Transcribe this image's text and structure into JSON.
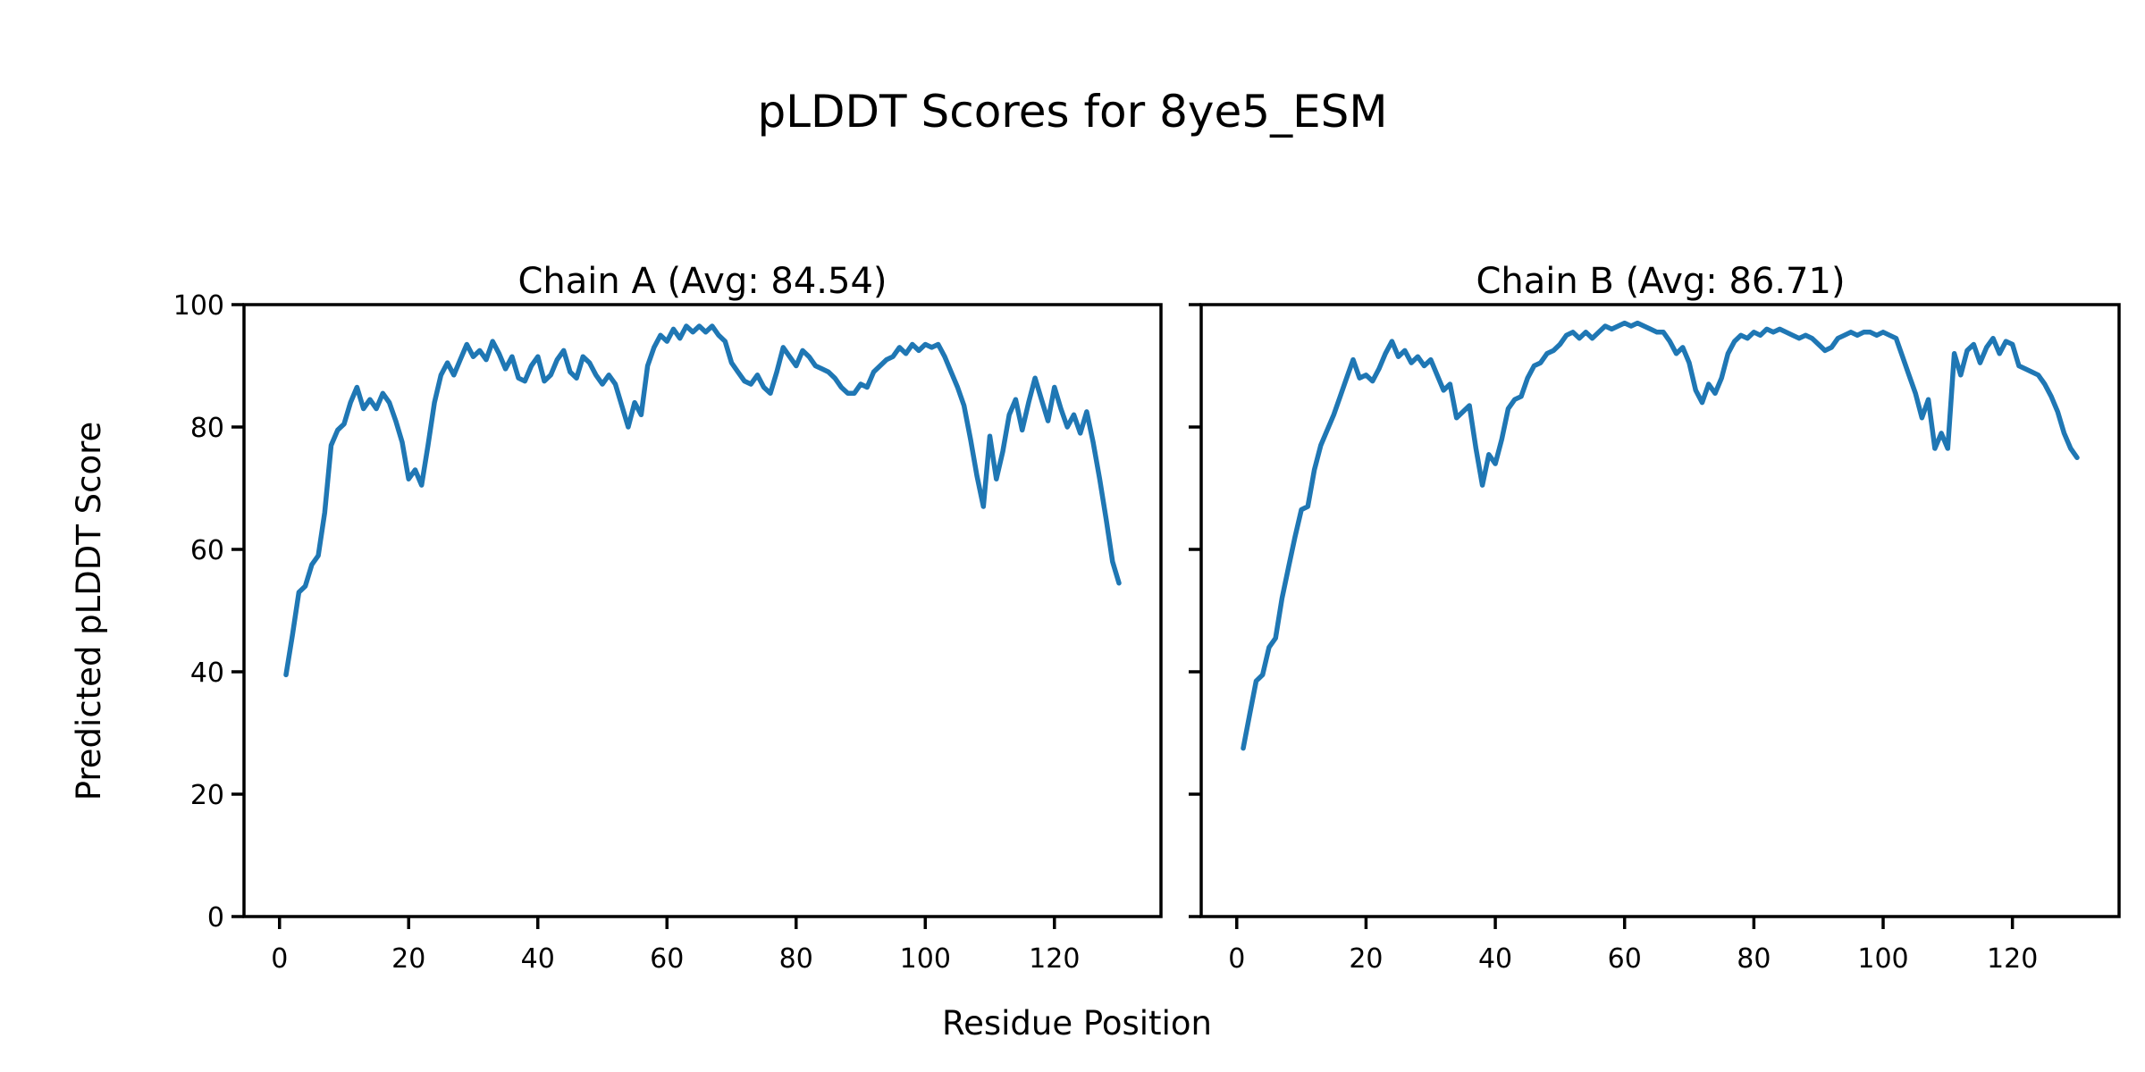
{
  "figure": {
    "suptitle": "pLDDT Scores for 8ye5_ESM",
    "xlabel": "Residue Position",
    "ylabel": "Predicted pLDDT Score",
    "background_color": "#ffffff",
    "text_color": "#000000",
    "line_color": "#1f77b4"
  },
  "chart_data": [
    {
      "type": "line",
      "title": "Chain A (Avg: 84.54)",
      "chain": "A",
      "average_plddt": 84.54,
      "xlabel": "Residue Position",
      "ylabel": "Predicted pLDDT Score",
      "xlim": [
        -5.5,
        136.5
      ],
      "ylim": [
        0,
        100
      ],
      "xticks": [
        0,
        20,
        40,
        60,
        80,
        100,
        120
      ],
      "yticks": [
        0,
        20,
        40,
        60,
        80,
        100
      ],
      "ytick_labels_visible": true,
      "grid": false,
      "legend": "none",
      "x_start_residue": 1,
      "series": [
        {
          "name": "Chain A pLDDT",
          "color": "#1f77b4",
          "values": [
            39.5,
            46,
            53,
            54,
            57.5,
            59,
            66,
            77,
            79.5,
            80.5,
            84,
            86.5,
            83,
            84.5,
            83,
            85.5,
            84,
            81,
            77.5,
            71.5,
            73,
            70.5,
            77,
            84,
            88.5,
            90.5,
            88.5,
            91,
            93.5,
            91.5,
            92.5,
            91,
            94,
            92,
            89.5,
            91.5,
            88,
            87.5,
            90,
            91.5,
            87.5,
            88.5,
            91,
            92.5,
            89,
            88,
            91.5,
            90.5,
            88.5,
            87,
            88.5,
            87,
            83.5,
            80,
            84,
            82,
            90,
            93,
            95,
            94,
            96,
            94.5,
            96.5,
            95.5,
            96.5,
            95.5,
            96.5,
            95,
            94,
            90.5,
            89,
            87.5,
            87,
            88.5,
            86.5,
            85.5,
            89,
            93,
            91.5,
            90,
            92.5,
            91.5,
            90,
            89.5,
            89,
            88,
            86.5,
            85.5,
            85.5,
            87,
            86.5,
            89,
            90,
            91,
            91.5,
            93,
            92,
            93.5,
            92.5,
            93.5,
            93,
            93.5,
            91.5,
            89,
            86.5,
            83.5,
            78,
            72,
            67,
            78.5,
            71.5,
            76,
            82,
            84.5,
            79.5,
            84,
            88,
            84.5,
            81,
            86.5,
            83,
            80,
            82,
            79,
            82.5,
            77.5,
            71.5,
            65,
            58,
            54.5
          ]
        }
      ]
    },
    {
      "type": "line",
      "title": "Chain B (Avg: 86.71)",
      "chain": "B",
      "average_plddt": 86.71,
      "xlabel": "Residue Position",
      "ylabel": "Predicted pLDDT Score",
      "xlim": [
        -5.5,
        136.5
      ],
      "ylim": [
        0,
        100
      ],
      "xticks": [
        0,
        20,
        40,
        60,
        80,
        100,
        120
      ],
      "yticks": [
        0,
        20,
        40,
        60,
        80,
        100
      ],
      "ytick_labels_visible": false,
      "grid": false,
      "legend": "none",
      "x_start_residue": 1,
      "series": [
        {
          "name": "Chain B pLDDT",
          "color": "#1f77b4",
          "values": [
            27.5,
            33,
            38.5,
            39.5,
            44,
            45.5,
            52,
            57,
            62,
            66.5,
            67,
            73,
            77,
            79.5,
            82,
            85,
            88,
            91,
            88,
            88.5,
            87.5,
            89.5,
            92,
            94,
            91.5,
            92.5,
            90.5,
            91.5,
            90,
            91,
            88.5,
            86,
            87,
            81.5,
            82.5,
            83.5,
            76.5,
            70.5,
            75.5,
            74,
            78,
            83,
            84.5,
            85,
            88,
            90,
            90.5,
            92,
            92.5,
            93.5,
            95,
            95.5,
            94.5,
            95.5,
            94.5,
            95.5,
            96.5,
            96,
            96.5,
            97,
            96.5,
            97,
            96.5,
            96,
            95.5,
            95.5,
            94,
            92,
            93,
            90.5,
            86,
            84,
            87,
            85.5,
            88,
            92,
            94,
            95,
            94.5,
            95.5,
            95,
            96,
            95.5,
            96,
            95.5,
            95,
            94.5,
            95,
            94.5,
            93.5,
            92.5,
            93,
            94.5,
            95,
            95.5,
            95,
            95.5,
            95.5,
            95,
            95.5,
            95,
            94.5,
            91.5,
            88.5,
            85.5,
            81.5,
            84.5,
            76.5,
            79,
            76.5,
            92,
            88.5,
            92.5,
            93.5,
            90.5,
            93,
            94.5,
            92,
            94,
            93.5,
            90,
            89.5,
            89,
            88.5,
            87,
            85,
            82.5,
            79,
            76.5,
            75
          ]
        }
      ]
    }
  ]
}
